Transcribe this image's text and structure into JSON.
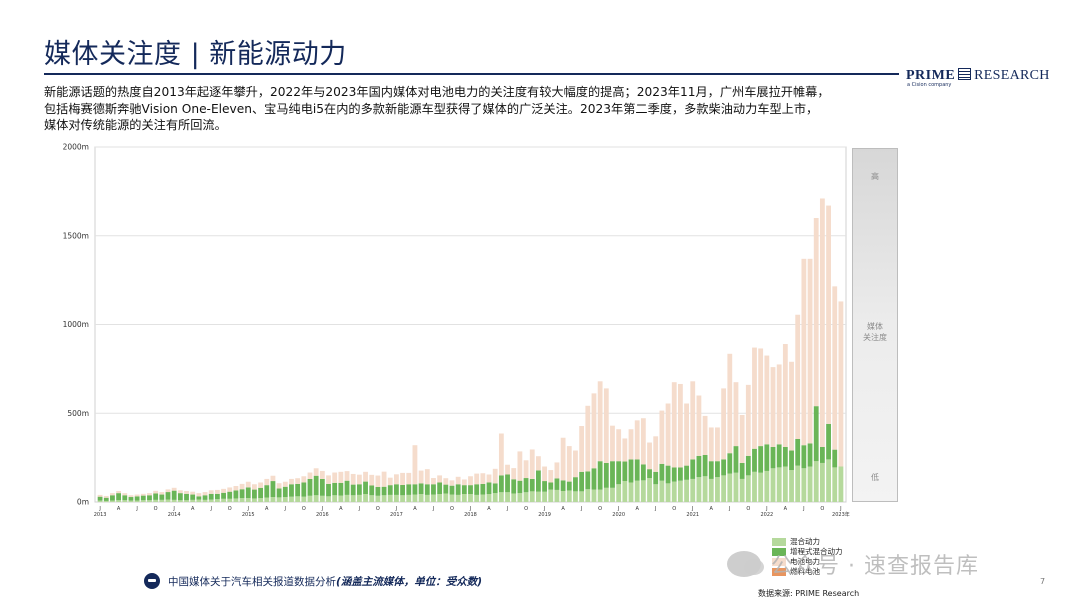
{
  "header": {
    "title": "媒体关注度 | 新能源动力",
    "brand_prime": "PRIME",
    "brand_research": "RESEARCH",
    "brand_sub": "a Cision company"
  },
  "description": [
    "新能源话题的热度自2013年起逐年攀升，2022年与2023年国内媒体对电池电力的关注度有较大幅度的提高；2023年11月，广州车展拉开帷幕，",
    "包括梅赛德斯奔驰Vision One-Eleven、宝马纯电i5在内的多款新能源车型获得了媒体的广泛关注。2023年第二季度，多款柴油动力车型上市，",
    "媒体对传统能源的关注有所回流。"
  ],
  "side_scale": {
    "high": "高",
    "mid_line1": "媒体",
    "mid_line2": "关注度",
    "low": "低"
  },
  "colors": {
    "hybrid": "#b5d99c",
    "range_extender": "#6ab557",
    "battery": "#f5dccc",
    "fuel_cell": "#e8955f"
  },
  "chart_data": {
    "type": "bar",
    "stacked": true,
    "title": "",
    "xlabel": "",
    "ylabel": "",
    "ylim": [
      0,
      2000
    ],
    "yticks": [
      "0m",
      "500m",
      "1000m",
      "1500m",
      "2000m"
    ],
    "ytick_values": [
      0,
      500,
      1000,
      1500,
      2000
    ],
    "grid": true,
    "legend_position": "bottom-right",
    "x_start": "2013-01",
    "month_tick_letters": [
      "J",
      "A",
      "J",
      "O"
    ],
    "year_labels": [
      "2013",
      "2014",
      "2015",
      "2016",
      "2017",
      "2018",
      "2019",
      "2020",
      "2021",
      "2022",
      "2023"
    ],
    "x_end_label": "2023年",
    "series": [
      {
        "name": "混合动力",
        "values": [
          8,
          6,
          8,
          10,
          10,
          8,
          8,
          10,
          10,
          12,
          12,
          14,
          12,
          10,
          10,
          12,
          14,
          12,
          14,
          16,
          18,
          18,
          20,
          22,
          22,
          20,
          22,
          25,
          28,
          26,
          28,
          30,
          32,
          30,
          35,
          38,
          35,
          32,
          38,
          36,
          40,
          38,
          40,
          45,
          38,
          35,
          38,
          40,
          40,
          38,
          40,
          42,
          45,
          40,
          42,
          45,
          48,
          42,
          40,
          45,
          45,
          40,
          42,
          45,
          50,
          55,
          55,
          48,
          50,
          55,
          60,
          58,
          58,
          70,
          68,
          62,
          65,
          60,
          60,
          72,
          70,
          70,
          80,
          80,
          100,
          118,
          110,
          120,
          122,
          135,
          100,
          120,
          105,
          115,
          120,
          125,
          130,
          140,
          145,
          130,
          140,
          150,
          160,
          165,
          130,
          150,
          170,
          165,
          175,
          190,
          195,
          200,
          180,
          205,
          190,
          200,
          230,
          220,
          240,
          195,
          200
        ]
      },
      {
        "name": "增程式混合动力",
        "values": [
          22,
          18,
          30,
          40,
          28,
          20,
          24,
          26,
          28,
          36,
          30,
          42,
          52,
          40,
          36,
          30,
          18,
          26,
          32,
          30,
          34,
          40,
          45,
          50,
          60,
          50,
          58,
          70,
          90,
          50,
          58,
          70,
          70,
          80,
          95,
          110,
          95,
          70,
          70,
          72,
          80,
          60,
          60,
          70,
          55,
          50,
          48,
          55,
          60,
          58,
          60,
          58,
          60,
          60,
          58,
          65,
          50,
          50,
          60,
          50,
          50,
          60,
          60,
          65,
          55,
          95,
          100,
          80,
          70,
          80,
          70,
          120,
          60,
          40,
          65,
          60,
          50,
          80,
          110,
          100,
          120,
          160,
          140,
          150,
          130,
          110,
          130,
          120,
          90,
          50,
          70,
          95,
          100,
          80,
          75,
          80,
          110,
          120,
          120,
          100,
          90,
          90,
          115,
          150,
          90,
          110,
          130,
          150,
          150,
          120,
          130,
          110,
          110,
          150,
          130,
          130,
          310,
          90,
          200,
          100
        ]
      },
      {
        "name": "电池电力",
        "values": [
          10,
          10,
          12,
          12,
          12,
          10,
          10,
          10,
          12,
          15,
          14,
          15,
          16,
          16,
          16,
          16,
          18,
          18,
          20,
          22,
          22,
          24,
          25,
          30,
          32,
          30,
          30,
          35,
          30,
          30,
          28,
          30,
          32,
          35,
          36,
          42,
          45,
          48,
          58,
          62,
          54,
          60,
          54,
          55,
          60,
          64,
          85,
          42,
          56,
          68,
          64,
          220,
          72,
          85,
          35,
          40,
          36,
          30,
          42,
          32,
          50,
          60,
          60,
          45,
          82,
          236,
          55,
          63,
          165,
          100,
          166,
          80,
          82,
          70,
          90,
          240,
          200,
          150,
          258,
          370,
          422,
          450,
          420,
          200,
          180,
          130,
          170,
          220,
          260,
          150,
          200,
          300,
          350,
          480,
          470,
          350,
          440,
          340,
          220,
          190,
          190,
          400,
          560,
          360,
          270,
          400,
          570,
          550,
          500,
          450,
          450,
          580,
          500,
          700,
          1050,
          1040,
          1060,
          1400,
          1230,
          920,
          930
        ]
      },
      {
        "name": "燃料电池",
        "values": [
          0,
          0,
          0,
          0,
          0,
          0,
          0,
          0,
          0,
          0,
          0,
          0,
          0,
          0,
          0,
          0,
          0,
          0,
          0,
          0,
          0,
          0,
          0,
          0,
          0,
          0,
          0,
          0,
          0,
          0,
          0,
          0,
          0,
          0,
          0,
          0,
          0,
          0,
          0,
          0,
          0,
          0,
          0,
          0,
          0,
          0,
          0,
          0,
          0,
          0,
          0,
          0,
          0,
          0,
          0,
          0,
          0,
          0,
          0,
          0,
          0,
          0,
          0,
          0,
          0,
          0,
          0,
          0,
          0,
          0,
          0,
          0,
          0,
          0,
          0,
          0,
          0,
          0,
          0,
          0,
          0,
          0,
          0,
          0,
          0,
          0,
          0,
          0,
          0,
          0,
          0,
          0,
          0,
          0,
          0,
          0,
          0,
          0,
          0,
          0,
          0,
          0,
          0,
          0,
          0,
          0,
          0,
          0,
          0,
          0,
          0,
          0,
          0,
          0,
          0,
          0,
          0,
          0,
          0,
          0,
          0
        ]
      }
    ],
    "data_source": "数据来源: PRIME Research"
  },
  "legend_items": [
    "混合动力",
    "增程式混合动力",
    "电池电力",
    "燃料电池"
  ],
  "footer": {
    "note_prefix": "中国媒体关于汽车相关报道数据分析",
    "note_em": "(涵盖主流媒体，单位：受众数)",
    "source": "数据来源: PRIME Research",
    "page_number": "7"
  },
  "watermark": {
    "text": "公众号 · 速查报告库"
  }
}
